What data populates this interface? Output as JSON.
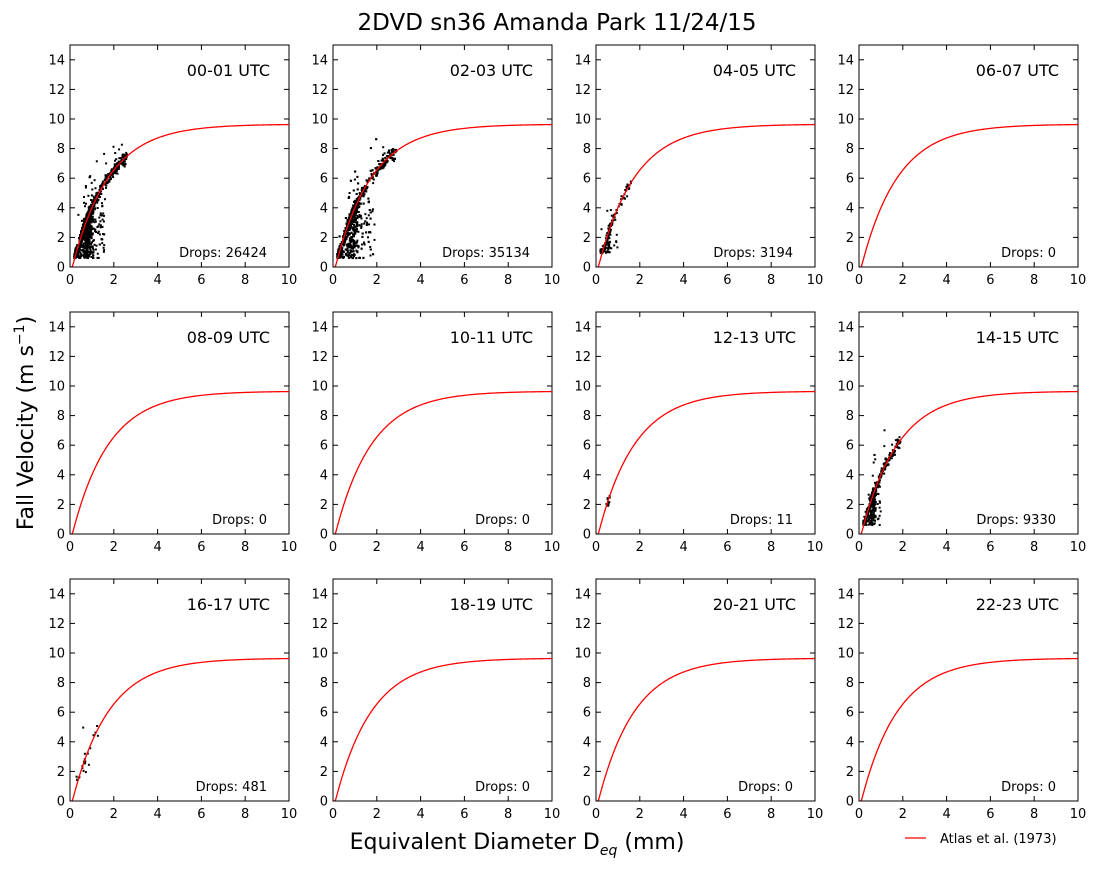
{
  "figure": {
    "title": "2DVD sn36 Amanda Park 11/24/15",
    "ylabel": "Fall Velocity (m s",
    "ylabel_sup": "−1",
    "ylabel_end": ")",
    "xlabel": "Equivalent Diameter D",
    "xlabel_sub": "eq",
    "xlabel_end": " (mm)",
    "legend": {
      "label": "Atlas et al. (1973)",
      "color": "#ff0000"
    },
    "curve_color": "#ff0000",
    "point_color": "#000000",
    "x_ticks": [
      "0",
      "2",
      "4",
      "6",
      "8",
      "10"
    ],
    "y_ticks": [
      "0",
      "2",
      "4",
      "6",
      "8",
      "10",
      "12",
      "14"
    ]
  },
  "chart_data": [
    {
      "type": "scatter",
      "panel_label": "00-01 UTC",
      "drops_text": "Drops: 26424",
      "drops": 26424,
      "xlim": [
        0,
        10
      ],
      "ylim": [
        0,
        15
      ],
      "cloud": {
        "dmin": 0.2,
        "dmax": 2.6,
        "dpeak": 0.8,
        "low_cut": 1.6,
        "vmin": 0.6
      },
      "curve": "9.65 - 10.3*exp(-0.6*D)"
    },
    {
      "type": "scatter",
      "panel_label": "02-03 UTC",
      "drops_text": "Drops: 35134",
      "drops": 35134,
      "xlim": [
        0,
        10
      ],
      "ylim": [
        0,
        15
      ],
      "cloud": {
        "dmin": 0.2,
        "dmax": 2.9,
        "dpeak": 0.9,
        "low_cut": 1.9,
        "vmin": 0.6
      },
      "curve": "9.65 - 10.3*exp(-0.6*D)"
    },
    {
      "type": "scatter",
      "panel_label": "04-05 UTC",
      "drops_text": "Drops: 3194",
      "drops": 3194,
      "xlim": [
        0,
        10
      ],
      "ylim": [
        0,
        15
      ],
      "cloud": {
        "dmin": 0.2,
        "dmax": 1.6,
        "dpeak": 0.6,
        "low_cut": 1.1,
        "vmin": 0.9
      },
      "curve": "9.65 - 10.3*exp(-0.6*D)"
    },
    {
      "type": "scatter",
      "panel_label": "06-07 UTC",
      "drops_text": "Drops: 0",
      "drops": 0,
      "xlim": [
        0,
        10
      ],
      "ylim": [
        0,
        15
      ],
      "cloud": null,
      "curve": "9.65 - 10.3*exp(-0.6*D)"
    },
    {
      "type": "scatter",
      "panel_label": "08-09 UTC",
      "drops_text": "Drops: 0",
      "drops": 0,
      "xlim": [
        0,
        10
      ],
      "ylim": [
        0,
        15
      ],
      "cloud": null,
      "curve": "9.65 - 10.3*exp(-0.6*D)"
    },
    {
      "type": "scatter",
      "panel_label": "10-11 UTC",
      "drops_text": "Drops: 0",
      "drops": 0,
      "xlim": [
        0,
        10
      ],
      "ylim": [
        0,
        15
      ],
      "cloud": null,
      "curve": "9.65 - 10.3*exp(-0.6*D)"
    },
    {
      "type": "scatter",
      "panel_label": "12-13 UTC",
      "drops_text": "Drops: 11",
      "drops": 11,
      "xlim": [
        0,
        10
      ],
      "ylim": [
        0,
        15
      ],
      "cloud": {
        "dmin": 0.45,
        "dmax": 0.7,
        "dpeak": 0.55,
        "low_cut": 0.7,
        "vmin": 1.8
      },
      "curve": "9.65 - 10.3*exp(-0.6*D)"
    },
    {
      "type": "scatter",
      "panel_label": "14-15 UTC",
      "drops_text": "Drops: 9330",
      "drops": 9330,
      "xlim": [
        0,
        10
      ],
      "ylim": [
        0,
        15
      ],
      "cloud": {
        "dmin": 0.2,
        "dmax": 1.9,
        "dpeak": 0.6,
        "low_cut": 1.0,
        "vmin": 0.6
      },
      "curve": "9.65 - 10.3*exp(-0.6*D)"
    },
    {
      "type": "scatter",
      "panel_label": "16-17 UTC",
      "drops_text": "Drops: 481",
      "drops": 481,
      "xlim": [
        0,
        10
      ],
      "ylim": [
        0,
        15
      ],
      "cloud": {
        "dmin": 0.3,
        "dmax": 1.3,
        "dpeak": 0.7,
        "low_cut": 0.9,
        "vmin": 1.4
      },
      "curve": "9.65 - 10.3*exp(-0.6*D)"
    },
    {
      "type": "scatter",
      "panel_label": "18-19 UTC",
      "drops_text": "Drops: 0",
      "drops": 0,
      "xlim": [
        0,
        10
      ],
      "ylim": [
        0,
        15
      ],
      "cloud": null,
      "curve": "9.65 - 10.3*exp(-0.6*D)"
    },
    {
      "type": "scatter",
      "panel_label": "20-21 UTC",
      "drops_text": "Drops: 0",
      "drops": 0,
      "xlim": [
        0,
        10
      ],
      "ylim": [
        0,
        15
      ],
      "cloud": null,
      "curve": "9.65 - 10.3*exp(-0.6*D)"
    },
    {
      "type": "scatter",
      "panel_label": "22-23 UTC",
      "drops_text": "Drops: 0",
      "drops": 0,
      "xlim": [
        0,
        10
      ],
      "ylim": [
        0,
        15
      ],
      "cloud": null,
      "curve": "9.65 - 10.3*exp(-0.6*D)"
    }
  ]
}
